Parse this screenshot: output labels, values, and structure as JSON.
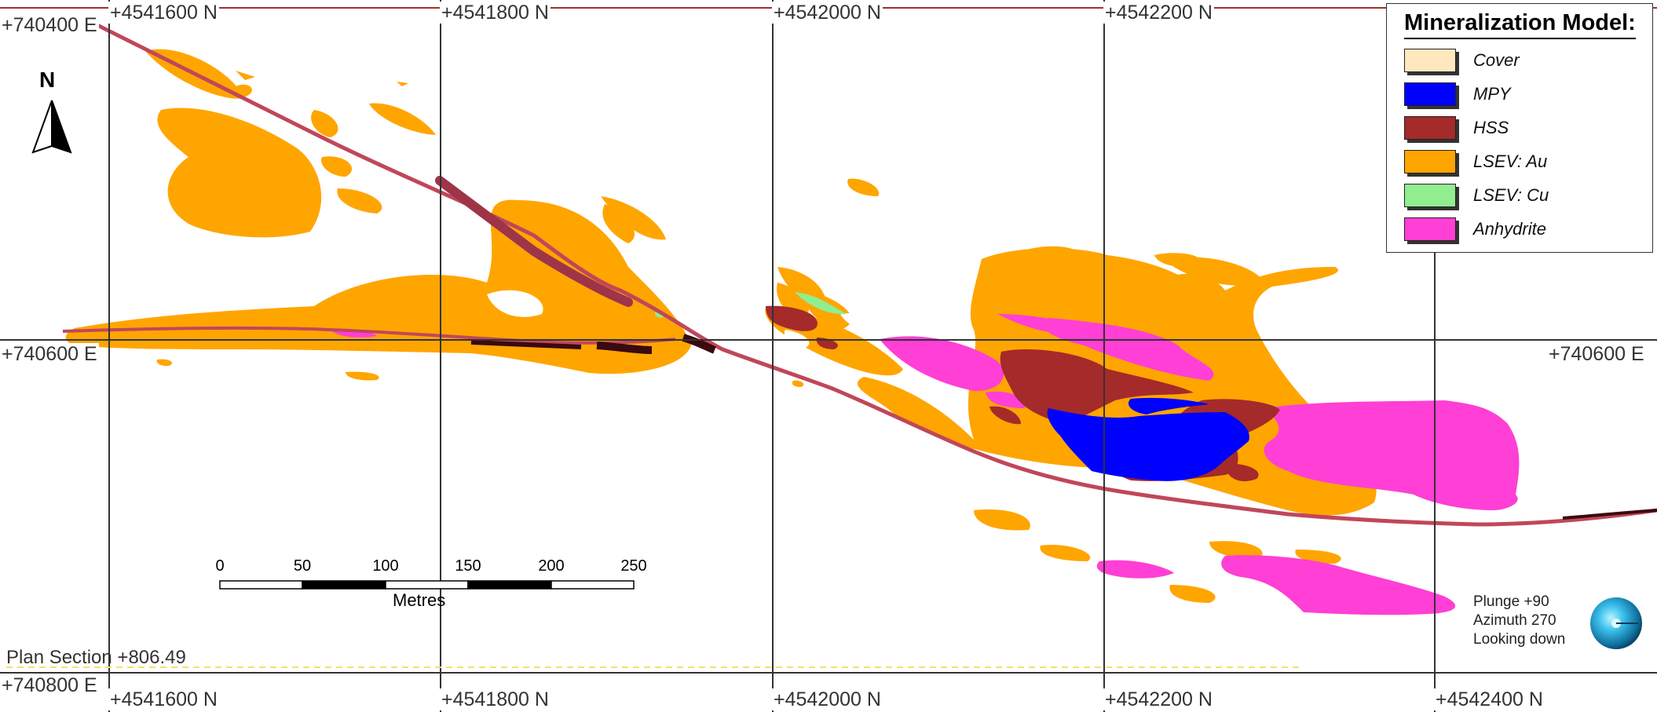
{
  "map": {
    "plan_section": "Plan Section +806.49",
    "grid_labels_top": [
      "+4541600 N",
      "+4541800 N",
      "+4542000 N",
      "+4542200 N"
    ],
    "grid_labels_bottom": [
      "+4541600 N",
      "+4541800 N",
      "+4542000 N",
      "+4542200 N",
      "+4542400 N"
    ],
    "grid_labels_left": [
      "+740400 E",
      "+740600 E",
      "+740800 E"
    ],
    "grid_label_right": "+740600 E",
    "north_label": "N"
  },
  "legend": {
    "title": "Mineralization Model:",
    "items": [
      {
        "label": "Cover",
        "color": "#FFE8BE"
      },
      {
        "label": "MPY",
        "color": "#0000FF"
      },
      {
        "label": "HSS",
        "color": "#A52A2A"
      },
      {
        "label": "LSEV: Au",
        "color": "#FFA500"
      },
      {
        "label": "LSEV: Cu",
        "color": "#90EE90"
      },
      {
        "label": "Anhydrite",
        "color": "#FF3FD5"
      }
    ]
  },
  "scalebar": {
    "ticks": [
      "0",
      "50",
      "100",
      "150",
      "200",
      "250"
    ],
    "unit": "Metres"
  },
  "view": {
    "plunge": "Plunge +90",
    "azimuth": "Azimuth 270",
    "looking": "Looking down"
  },
  "colors": {
    "grid": "#333333",
    "fault": "#C0475A",
    "fault_dark": "#3A0A10",
    "border_line": "#A03030"
  }
}
